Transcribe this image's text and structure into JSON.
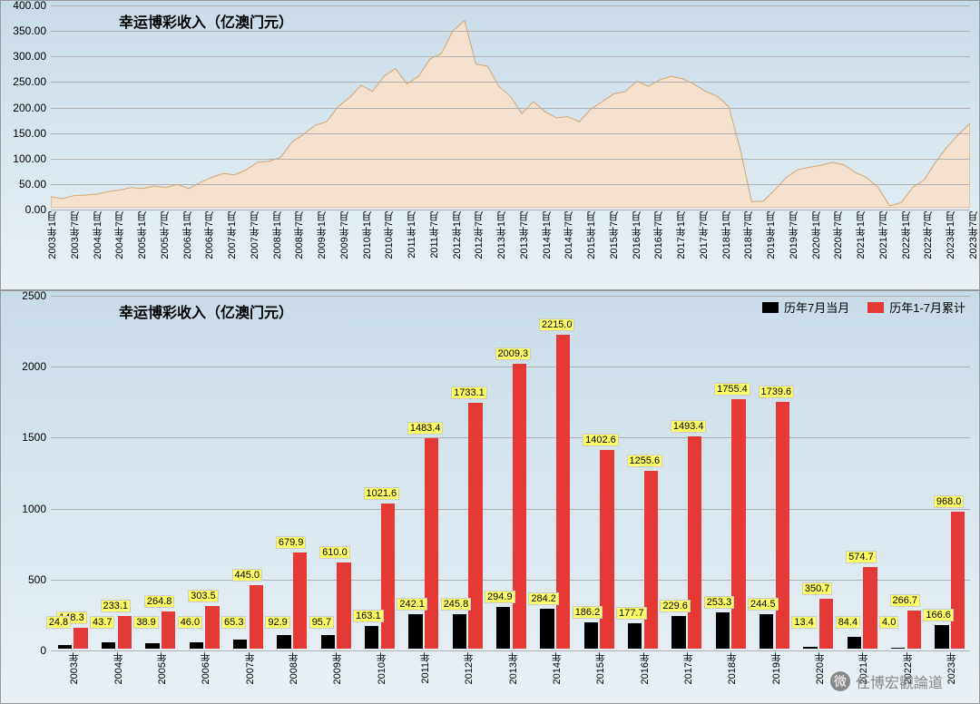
{
  "top_chart": {
    "type": "area",
    "title": "幸运博彩收入（亿澳门元）",
    "title_fontsize": 16,
    "background_gradient": [
      "#c8dce8",
      "#e8f0f5"
    ],
    "area_fill": "#f3e0cd",
    "area_stroke": "#d4a674",
    "grid_color": "#b0b0b0",
    "ylim": [
      0,
      400
    ],
    "ytick_step": 50,
    "yticks": [
      "0.00",
      "50.00",
      "100.00",
      "150.00",
      "200.00",
      "250.00",
      "300.00",
      "350.00",
      "400.00"
    ],
    "x_labels": [
      "2003年1月",
      "2003年7月",
      "2004年1月",
      "2004年7月",
      "2005年1月",
      "2005年7月",
      "2006年1月",
      "2006年7月",
      "2007年1月",
      "2007年7月",
      "2008年1月",
      "2008年7月",
      "2009年1月",
      "2009年7月",
      "2010年1月",
      "2010年7月",
      "2011年1月",
      "2011年7月",
      "2012年1月",
      "2012年7月",
      "2013年1月",
      "2013年7月",
      "2014年1月",
      "2014年7月",
      "2015年1月",
      "2015年7月",
      "2016年1月",
      "2016年7月",
      "2017年1月",
      "2017年7月",
      "2018年1月",
      "2018年7月",
      "2019年1月",
      "2019年7月",
      "2020年1月",
      "2020年7月",
      "2021年1月",
      "2021年7月",
      "2022年1月",
      "2022年7月",
      "2023年1月",
      "2023年7月"
    ],
    "series": [
      22,
      18,
      24,
      25,
      27,
      32,
      35,
      40,
      38,
      43,
      40,
      46,
      38,
      50,
      60,
      68,
      65,
      75,
      90,
      92,
      100,
      130,
      145,
      163,
      170,
      200,
      218,
      242,
      230,
      260,
      275,
      245,
      260,
      294,
      305,
      350,
      370,
      284,
      280,
      240,
      220,
      186,
      210,
      190,
      178,
      180,
      170,
      195,
      210,
      225,
      230,
      250,
      240,
      253,
      260,
      255,
      244,
      230,
      220,
      200,
      115,
      12,
      13,
      35,
      60,
      75,
      80,
      84,
      90,
      85,
      70,
      60,
      40,
      4,
      10,
      40,
      55,
      90,
      120,
      145,
      167
    ]
  },
  "bottom_chart": {
    "type": "bar",
    "title": "幸运博彩收入（亿澳门元）",
    "title_fontsize": 16,
    "background_gradient": [
      "#c8dce8",
      "#e8f0f5"
    ],
    "grid_color": "#b0b0b0",
    "ylim": [
      0,
      2500
    ],
    "ytick_step": 500,
    "yticks": [
      "0",
      "500",
      "1000",
      "1500",
      "2000",
      "2500"
    ],
    "categories": [
      "2003年",
      "2004年",
      "2005年",
      "2006年",
      "2007年",
      "2008年",
      "2009年",
      "2010年",
      "2011年",
      "2012年",
      "2013年",
      "2014年",
      "2015年",
      "2016年",
      "2017年",
      "2018年",
      "2019年",
      "2020年",
      "2021年",
      "2022年",
      "2023年"
    ],
    "legend": [
      {
        "label": "历年7月当月",
        "color": "#000000"
      },
      {
        "label": "历年1-7月累计",
        "color": "#e53935"
      }
    ],
    "series_july": [
      24.8,
      43.7,
      38.9,
      46.0,
      65.3,
      92.9,
      95.7,
      163.1,
      242.1,
      245.8,
      294.9,
      284.2,
      186.2,
      177.7,
      229.6,
      253.3,
      244.5,
      13.4,
      84.4,
      4.0,
      166.6
    ],
    "series_cumu": [
      148.3,
      233.1,
      264.8,
      303.5,
      445.0,
      679.9,
      610.0,
      1021.6,
      1483.4,
      1733.1,
      2009.3,
      2215.0,
      1402.6,
      1255.6,
      1493.4,
      1755.4,
      1739.6,
      350.7,
      574.7,
      266.7,
      968.0
    ],
    "bar_colors": [
      "#000000",
      "#e53935"
    ],
    "label_bg": "#ffff66",
    "label_fontsize": 11,
    "bar_group_width": 0.75
  },
  "watermark": {
    "text": "任博宏觀論道",
    "icon": "微"
  }
}
